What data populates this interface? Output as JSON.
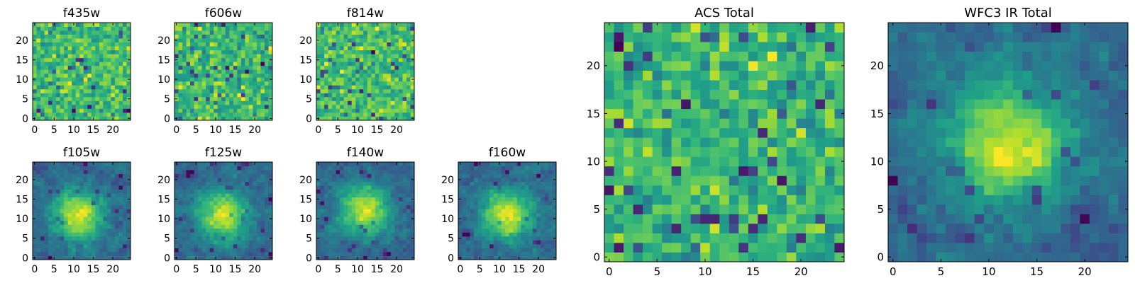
{
  "figure": {
    "colormap": "viridis",
    "colors": {
      "low": "#440154",
      "mid": "#21918c",
      "high": "#fde725",
      "axis": "#000000",
      "background": "#ffffff"
    }
  },
  "chart_data": [
    {
      "type": "heatmap",
      "title": "f435w",
      "grid_size": 25,
      "xticks": [
        0,
        5,
        10,
        15,
        20
      ],
      "yticks": [
        0,
        5,
        10,
        15,
        20
      ],
      "xlim": [
        -0.5,
        24.5
      ],
      "ylim": [
        -0.5,
        24.5
      ],
      "pattern": "noise",
      "seed": 11
    },
    {
      "type": "heatmap",
      "title": "f606w",
      "grid_size": 25,
      "xticks": [
        0,
        5,
        10,
        15,
        20
      ],
      "yticks": [
        0,
        5,
        10,
        15,
        20
      ],
      "xlim": [
        -0.5,
        24.5
      ],
      "ylim": [
        -0.5,
        24.5
      ],
      "pattern": "noise",
      "seed": 23
    },
    {
      "type": "heatmap",
      "title": "f814w",
      "grid_size": 25,
      "xticks": [
        0,
        5,
        10,
        15,
        20
      ],
      "yticks": [
        0,
        5,
        10,
        15,
        20
      ],
      "xlim": [
        -0.5,
        24.5
      ],
      "ylim": [
        -0.5,
        24.5
      ],
      "pattern": "noise",
      "seed": 37
    },
    {
      "type": "heatmap",
      "title": "f105w",
      "grid_size": 25,
      "xticks": [
        0,
        5,
        10,
        15,
        20
      ],
      "yticks": [
        0,
        5,
        10,
        15,
        20
      ],
      "xlim": [
        -0.5,
        24.5
      ],
      "ylim": [
        -0.5,
        24.5
      ],
      "pattern": "source",
      "source_center": [
        11,
        11
      ],
      "seed": 41
    },
    {
      "type": "heatmap",
      "title": "f125w",
      "grid_size": 25,
      "xticks": [
        0,
        5,
        10,
        15,
        20
      ],
      "yticks": [
        0,
        5,
        10,
        15,
        20
      ],
      "xlim": [
        -0.5,
        24.5
      ],
      "ylim": [
        -0.5,
        24.5
      ],
      "pattern": "source",
      "source_center": [
        12,
        11
      ],
      "seed": 53
    },
    {
      "type": "heatmap",
      "title": "f140w",
      "grid_size": 25,
      "xticks": [
        0,
        5,
        10,
        15,
        20
      ],
      "yticks": [
        0,
        5,
        10,
        15,
        20
      ],
      "xlim": [
        -0.5,
        24.5
      ],
      "ylim": [
        -0.5,
        24.5
      ],
      "pattern": "source",
      "source_center": [
        12,
        12
      ],
      "seed": 67
    },
    {
      "type": "heatmap",
      "title": "f160w",
      "grid_size": 25,
      "xticks": [
        0,
        5,
        10,
        15,
        20
      ],
      "yticks": [
        0,
        5,
        10,
        15,
        20
      ],
      "xlim": [
        -0.5,
        24.5
      ],
      "ylim": [
        -0.5,
        24.5
      ],
      "pattern": "source",
      "source_center": [
        12,
        11
      ],
      "seed": 79
    },
    {
      "type": "heatmap",
      "title": "ACS Total",
      "grid_size": 25,
      "xticks": [
        0,
        5,
        10,
        15,
        20
      ],
      "yticks": [
        0,
        5,
        10,
        15,
        20
      ],
      "xlim": [
        -0.5,
        24.5
      ],
      "ylim": [
        -0.5,
        24.5
      ],
      "pattern": "noise",
      "seed": 89
    },
    {
      "type": "heatmap",
      "title": "WFC3 IR Total",
      "grid_size": 25,
      "xticks": [
        0,
        5,
        10,
        15,
        20
      ],
      "yticks": [
        0,
        5,
        10,
        15,
        20
      ],
      "xlim": [
        -0.5,
        24.5
      ],
      "ylim": [
        -0.5,
        24.5
      ],
      "pattern": "source",
      "source_center": [
        12,
        12
      ],
      "seed": 97
    }
  ]
}
